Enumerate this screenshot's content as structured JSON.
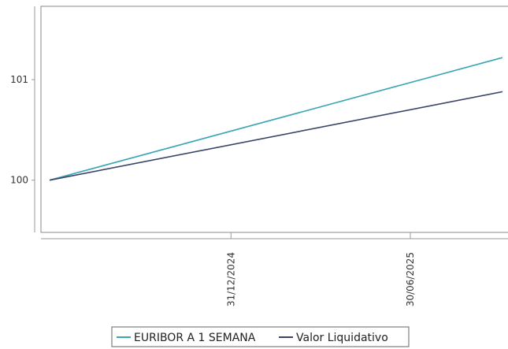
{
  "chart_data": {
    "type": "line",
    "title": "",
    "xlabel": "",
    "ylabel": "",
    "x": [
      "2024-07-01",
      "2025-10-01"
    ],
    "x_tick_labels": [
      "31/12/2024",
      "30/06/2025"
    ],
    "x_tick_dates": [
      "2024-12-31",
      "2025-06-30"
    ],
    "y_ticks": [
      100,
      101
    ],
    "y_tick_labels": [
      "100",
      "101"
    ],
    "ylim": [
      99.48,
      101.73
    ],
    "grid": false,
    "legend_position": "bottom-center",
    "series": [
      {
        "name": "EURIBOR A 1 SEMANA",
        "color": "#3aa6b4",
        "values": [
          100.0,
          101.22
        ]
      },
      {
        "name": "Valor Liquidativo",
        "color": "#3a4468",
        "values": [
          100.0,
          100.88
        ]
      }
    ]
  }
}
